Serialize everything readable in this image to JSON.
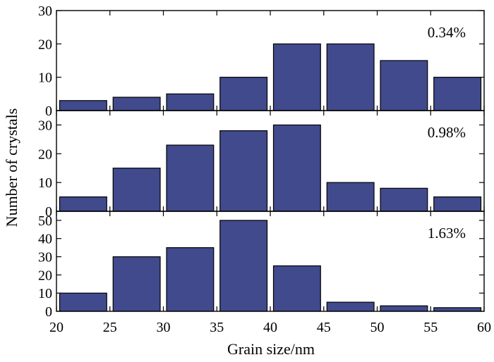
{
  "chart_data": {
    "type": "bar",
    "xlabel": "Grain size/nm",
    "ylabel": "Number of crystals",
    "xlim": [
      20,
      60
    ],
    "xticks": [
      20,
      25,
      30,
      35,
      40,
      45,
      50,
      55,
      60
    ],
    "bar_color": "#414a8c",
    "bins": [
      {
        "start": 20,
        "end": 25
      },
      {
        "start": 25,
        "end": 30
      },
      {
        "start": 30,
        "end": 35
      },
      {
        "start": 35,
        "end": 40
      },
      {
        "start": 40,
        "end": 45
      },
      {
        "start": 45,
        "end": 50
      },
      {
        "start": 50,
        "end": 55
      },
      {
        "start": 55,
        "end": 60
      }
    ],
    "panels": [
      {
        "annotation": "0.34%",
        "ylim": [
          0,
          30
        ],
        "yticks": [
          0,
          10,
          20,
          30
        ],
        "values": [
          3,
          4,
          5,
          10,
          20,
          20,
          15,
          10
        ]
      },
      {
        "annotation": "0.98%",
        "ylim": [
          0,
          35
        ],
        "yticks": [
          0,
          10,
          20,
          30
        ],
        "values": [
          5,
          15,
          23,
          28,
          30,
          10,
          8,
          5
        ]
      },
      {
        "annotation": "1.63%",
        "ylim": [
          0,
          55
        ],
        "yticks": [
          0,
          10,
          20,
          30,
          40,
          50
        ],
        "values": [
          10,
          30,
          35,
          50,
          25,
          5,
          3,
          2
        ]
      }
    ]
  }
}
